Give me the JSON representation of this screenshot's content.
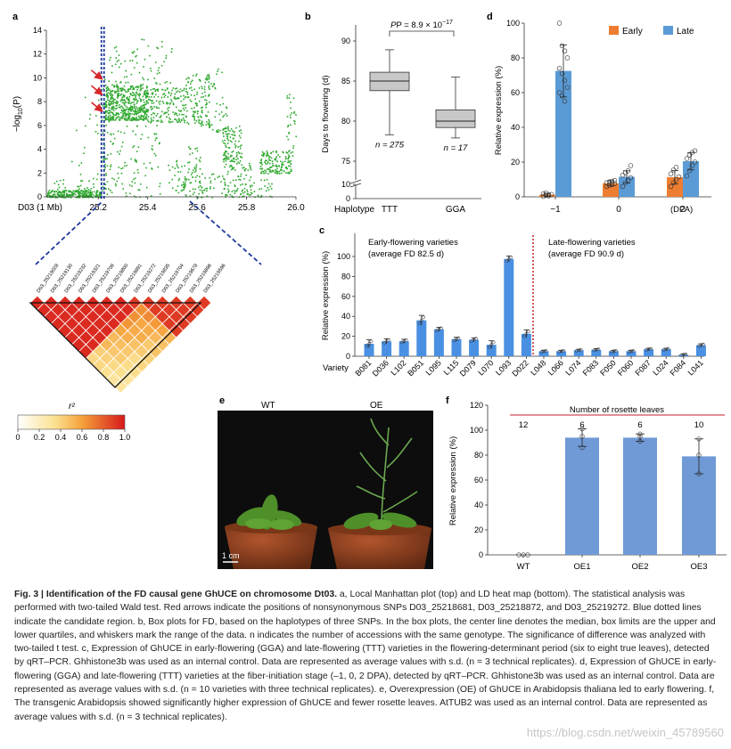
{
  "colors": {
    "manhattan": "#2ea82e",
    "early": "#ed7d31",
    "late": "#5b9bd5",
    "barC": "#4a90e2",
    "barF": "#6f9ad6",
    "box": "#c8c8c8",
    "redline": "#c0202a",
    "ld_low": "#ffffff",
    "ld_mid": "#f5b942",
    "ld_high": "#d7191c",
    "blue_dotted": "#1f3a9e"
  },
  "panels": {
    "a": "a",
    "b": "b",
    "c": "c",
    "d": "d",
    "e": "e",
    "f": "f"
  },
  "chart_data": [
    {
      "panel": "a",
      "type": "scatter",
      "description_x": "D03 (1 Mb)",
      "xlabel": "D03 (1 Mb)",
      "ylabel": "-log10(P)",
      "ylabel_main": "−log",
      "ylabel_sub": "10",
      "ylabel_tail": "(P)",
      "xticks": [
        "25.2",
        "25.4",
        "25.6",
        "25.8",
        "26.0"
      ],
      "xtick_values": [
        25.2,
        25.4,
        25.6,
        25.8,
        26.0
      ],
      "yticks": [
        0,
        2,
        4,
        6,
        8,
        10,
        12,
        14
      ],
      "xlim": [
        24.99,
        26.0
      ],
      "ylim": [
        0,
        14
      ],
      "candidate_region": [
        25.2127,
        25.2235
      ],
      "arrows_at": [
        [
          25.2185,
          9.9
        ],
        [
          25.2189,
          8.6
        ],
        [
          25.2192,
          7.2
        ]
      ],
      "clusters": [
        {
          "x": [
            24.99,
            25.21
          ],
          "y": [
            0,
            0.6
          ],
          "n": 260
        },
        {
          "x": [
            25.0,
            25.2
          ],
          "y": [
            0.6,
            1.6
          ],
          "n": 25
        },
        {
          "x": [
            25.09,
            25.2
          ],
          "y": [
            1.5,
            8.5
          ],
          "n": 18
        },
        {
          "x": [
            25.21,
            25.23
          ],
          "y": [
            0.5,
            10.5
          ],
          "n": 40
        },
        {
          "x": [
            25.225,
            25.4
          ],
          "y": [
            6.5,
            9.5
          ],
          "n": 520
        },
        {
          "x": [
            25.23,
            25.45
          ],
          "y": [
            0,
            6.5
          ],
          "n": 110
        },
        {
          "x": [
            25.24,
            25.5
          ],
          "y": [
            9.5,
            13.3
          ],
          "n": 70
        },
        {
          "x": [
            25.4,
            25.55
          ],
          "y": [
            6.3,
            9.2
          ],
          "n": 160
        },
        {
          "x": [
            25.48,
            25.55
          ],
          "y": [
            0.4,
            3.2
          ],
          "n": 40
        },
        {
          "x": [
            25.55,
            25.65
          ],
          "y": [
            6,
            10.5
          ],
          "n": 130
        },
        {
          "x": [
            25.55,
            25.62
          ],
          "y": [
            0,
            4.3
          ],
          "n": 55
        },
        {
          "x": [
            25.6,
            25.7
          ],
          "y": [
            0,
            2
          ],
          "n": 30
        },
        {
          "x": [
            25.63,
            25.72
          ],
          "y": [
            5.5,
            11
          ],
          "n": 40
        },
        {
          "x": [
            25.7,
            25.78
          ],
          "y": [
            3,
            6
          ],
          "n": 110
        },
        {
          "x": [
            25.7,
            25.82
          ],
          "y": [
            0,
            3
          ],
          "n": 90
        },
        {
          "x": [
            25.8,
            25.9
          ],
          "y": [
            0,
            1.5
          ],
          "n": 30
        },
        {
          "x": [
            25.85,
            25.98
          ],
          "y": [
            2,
            3.9
          ],
          "n": 150
        },
        {
          "x": [
            25.96,
            26.0
          ],
          "y": [
            3.5,
            9.5
          ],
          "n": 30
        }
      ]
    },
    {
      "panel": "a-ld",
      "type": "heatmap",
      "snps": [
        "D03_25219028",
        "D03_25219130",
        "D03_25219232",
        "D03_25219321",
        "D03_25219709",
        "D03_25219800",
        "D03_25219891",
        "D03_25219272",
        "D03_25219835",
        "D03_25219704",
        "D03_25219678",
        "D03_25219896",
        "D03_25219596"
      ],
      "colorbar_label": "r²",
      "colorbar_ticks": [
        "0",
        "0.2",
        "0.4",
        "0.6",
        "0.8",
        "1.0"
      ]
    },
    {
      "panel": "b",
      "type": "box",
      "categories": [
        "TTT",
        "GGA"
      ],
      "haplotype_label": "Haplotype",
      "ylabel": "Days to flowering (d)",
      "yticks": [
        0,
        10,
        75,
        80,
        85,
        90
      ],
      "ylim_upper": [
        74,
        92
      ],
      "stats": [
        {
          "label": "TTT",
          "min": 78.3,
          "q1": 83.8,
          "median": 85,
          "q3": 86.1,
          "max": 88.9,
          "n": "n = 275"
        },
        {
          "label": "GGA",
          "min": 77.9,
          "q1": 79.2,
          "median": 80,
          "q3": 81.4,
          "max": 85.5,
          "n": "n = 17"
        }
      ],
      "pvalue_text": "P = 8.9 × 10",
      "pvalue_exp": "−17"
    },
    {
      "panel": "d",
      "type": "bar",
      "ylabel": "Relative expression (%)",
      "categories": [
        "−1",
        "0",
        "2"
      ],
      "unit_label": "(DPA)",
      "ylim": [
        0,
        100
      ],
      "yticks": [
        0,
        20,
        40,
        60,
        80,
        100
      ],
      "series": [
        {
          "name": "Early",
          "values": [
            1.2,
            7.8,
            11.3
          ],
          "sd": [
            0.9,
            1.5,
            3.8
          ],
          "points": [
            [
              0.2,
              0.8,
              1.1,
              1.4,
              1.8,
              2.3,
              0.5
            ],
            [
              6.0,
              6.6,
              7.1,
              7.6,
              8.1,
              8.6,
              9.0,
              9.4
            ],
            [
              6.0,
              8.0,
              9.8,
              11.5,
              13.2,
              15.5,
              17.0
            ]
          ]
        },
        {
          "name": "Late",
          "values": [
            72.5,
            11.5,
            20.5
          ],
          "sd": [
            15,
            3.5,
            5
          ],
          "points": [
            [
              100,
              87,
              84,
              80,
              74,
              71,
              67,
              63,
              60,
              58,
              55
            ],
            [
              6.0,
              8.0,
              9.5,
              11.0,
              12.5,
              13.8,
              15.0,
              18.0
            ],
            [
              12,
              15,
              18,
              20,
              22,
              24,
              25.5,
              26.5
            ]
          ]
        }
      ]
    },
    {
      "panel": "c",
      "type": "bar",
      "ylabel": "Relative expression (%)",
      "xlabel": "Variety",
      "ylim": [
        0,
        100
      ],
      "yticks": [
        0,
        20,
        40,
        60,
        80,
        100
      ],
      "categories": [
        "B081",
        "D036",
        "L102",
        "B051",
        "L095",
        "L115",
        "D079",
        "L070",
        "L093",
        "D022",
        "L048",
        "L066",
        "L074",
        "F083",
        "F050",
        "F060",
        "F087",
        "L024",
        "F084",
        "L041"
      ],
      "values": [
        12.5,
        15,
        15,
        36,
        27,
        17,
        16.5,
        11.5,
        97.5,
        22.5,
        5,
        5,
        6,
        6.5,
        5,
        5,
        7,
        7,
        1.5,
        11
      ],
      "sd": [
        4,
        2.5,
        2,
        5,
        2,
        2,
        2,
        4,
        3,
        4,
        1,
        1,
        1,
        1,
        1,
        1,
        1,
        1,
        1,
        1.5
      ],
      "group_early": "Early-flowering varieties",
      "group_early_avg": "(average FD 82.5 d)",
      "group_late": "Late-flowering varieties",
      "group_late_avg": "(average FD 90.9 d)"
    },
    {
      "panel": "f",
      "type": "bar",
      "ylabel": "Relative expression (%)",
      "categories": [
        "WT",
        "OE1",
        "OE2",
        "OE3"
      ],
      "values": [
        0,
        94,
        94,
        79
      ],
      "sd": [
        0.5,
        7,
        3,
        14
      ],
      "points": [
        [
          0,
          0,
          0
        ],
        [
          86,
          95,
          101
        ],
        [
          91,
          95,
          97
        ],
        [
          65,
          80,
          93
        ]
      ],
      "ylim": [
        0,
        120
      ],
      "yticks": [
        0,
        20,
        40,
        60,
        80,
        100,
        120
      ],
      "rosette_title": "Number of rosette leaves",
      "rosette_counts": [
        "12",
        "6",
        "6",
        "10"
      ]
    }
  ],
  "photo": {
    "label_wt": "WT",
    "label_oe": "OE",
    "scale": "1 cm"
  },
  "caption": {
    "title": "Fig. 3 | Identification of the FD causal gene GhUCE on chromosome Dt03.",
    "body": [
      " a, Local Manhattan plot (top) and LD heat map (bottom). The statistical analysis was performed with two-tailed Wald test. Red arrows indicate the positions of nonsynonymous SNPs D03_25218681, D03_25218872, and D03_25219272. Blue dotted lines indicate the candidate region. b, Box plots for FD, based on the haplotypes of three SNPs. In the box plots, the center line denotes the median, box limits are the upper and lower quartiles, and whiskers mark the range of the data. n indicates the number of accessions with the same genotype. The significance of difference was analyzed with two-tailed t test. c, Expression of GhUCE in early-flowering (GGA) and late-flowering (TTT) varieties in the flowering-determinant period (six to eight true leaves), detected by qRT–PCR. Ghhistone3b was used as an internal control. Data are represented as average values with s.d. (n = 3 technical replicates). d, Expression of GhUCE in early-flowering (GGA) and late-flowering (TTT) varieties at the fiber-initiation stage (–1, 0, 2 DPA), detected by qRT–PCR. Ghhistone3b was used as an internal control. Data are represented as average values with s.d. (n = 10 varieties with three technical replicates). e, Overexpression (OE) of GhUCE in Arabidopsis thaliana led to early flowering. f, The transgenic Arabidopsis showed significantly higher expression of GhUCE and fewer rosette leaves. AtTUB2 was used as an internal control. Data are represented as average values with s.d. (n = 3 technical replicates)."
    ]
  },
  "watermark": "https://blog.csdn.net/weixin_45789560"
}
